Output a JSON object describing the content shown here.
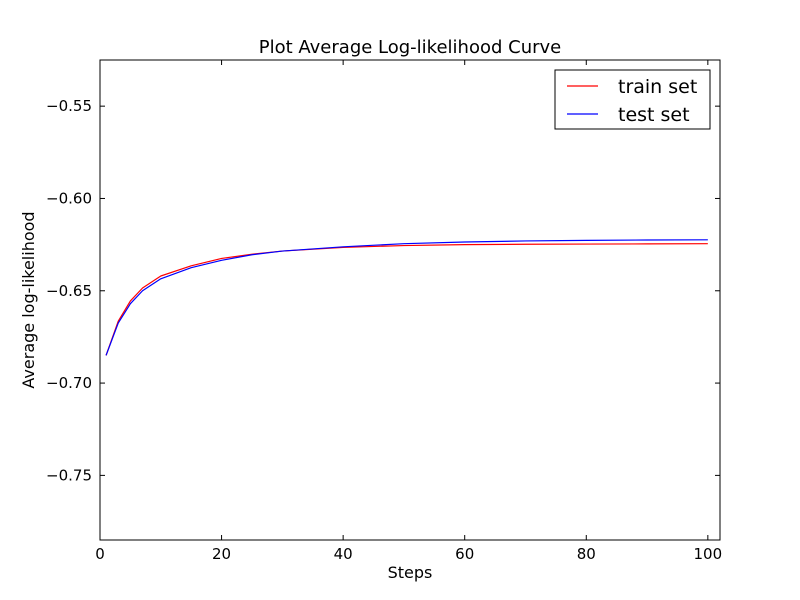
{
  "chart_data": {
    "type": "line",
    "title": "Plot Average Log-likelihood Curve",
    "xlabel": "Steps",
    "ylabel": "Average log-likelihood",
    "xlim": [
      0,
      102
    ],
    "ylim": [
      -0.785,
      -0.525
    ],
    "xticks": [
      0,
      20,
      40,
      60,
      80,
      100
    ],
    "xtick_labels": [
      "0",
      "20",
      "40",
      "60",
      "80",
      "100"
    ],
    "yticks": [
      -0.55,
      -0.6,
      -0.65,
      -0.7,
      -0.75
    ],
    "ytick_labels": [
      "−0.55",
      "−0.60",
      "−0.65",
      "−0.70",
      "−0.75"
    ],
    "grid": false,
    "legend_position": "top-right",
    "x": [
      1,
      3,
      5,
      7,
      10,
      15,
      20,
      25,
      30,
      40,
      50,
      60,
      70,
      80,
      90,
      100
    ],
    "series": [
      {
        "name": "train set",
        "color": "#ff0000",
        "values": [
          -0.685,
          -0.6665,
          -0.6555,
          -0.6485,
          -0.642,
          -0.6365,
          -0.6325,
          -0.6302,
          -0.6285,
          -0.6265,
          -0.6255,
          -0.625,
          -0.6248,
          -0.6247,
          -0.6246,
          -0.6245
        ]
      },
      {
        "name": "test set",
        "color": "#0000ff",
        "values": [
          -0.685,
          -0.6675,
          -0.657,
          -0.65,
          -0.6435,
          -0.6375,
          -0.6335,
          -0.6305,
          -0.6285,
          -0.6262,
          -0.6245,
          -0.6236,
          -0.623,
          -0.6227,
          -0.6225,
          -0.6224
        ]
      }
    ]
  }
}
